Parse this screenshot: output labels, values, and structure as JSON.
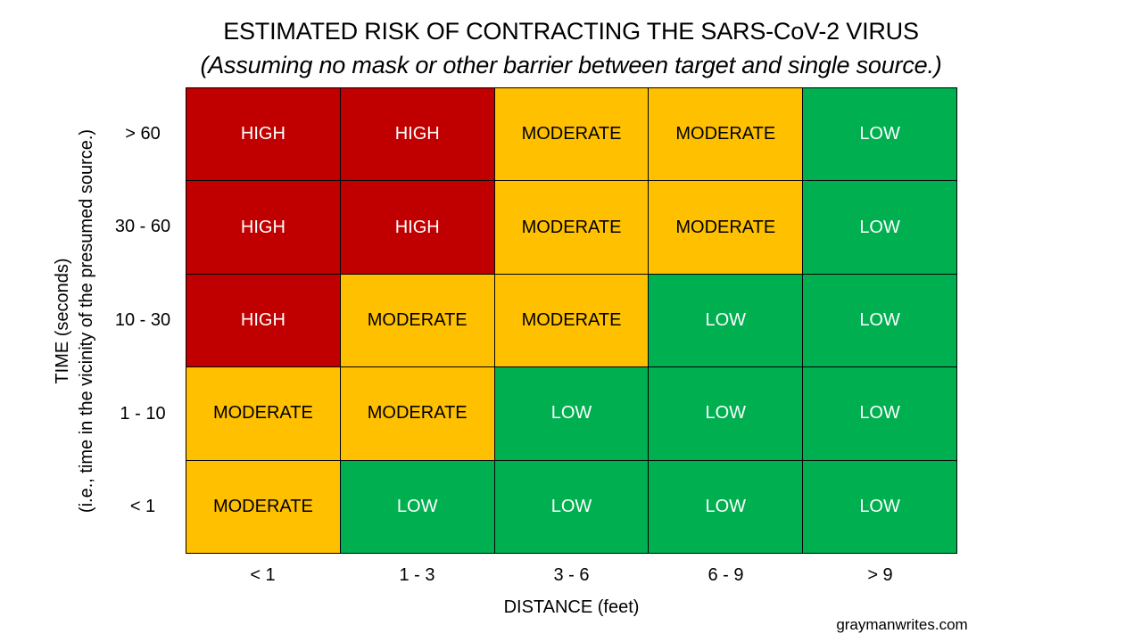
{
  "chart_data": {
    "type": "heatmap",
    "title": "ESTIMATED RISK OF CONTRACTING THE SARS-CoV-2 VIRUS",
    "subtitle": "(Assuming no mask or other barrier between target and single source.)",
    "xlabel": "DISTANCE (feet)",
    "ylabel": [
      "TIME (seconds)",
      "(i.e., time in the vicinity of the presumed source.)"
    ],
    "x_categories": [
      "< 1",
      "1 - 3",
      "3 - 6",
      "6 - 9",
      "> 9"
    ],
    "y_categories": [
      "> 60",
      "30 - 60",
      "10 - 30",
      "1 - 10",
      "< 1"
    ],
    "values": [
      [
        "HIGH",
        "HIGH",
        "MODERATE",
        "MODERATE",
        "LOW"
      ],
      [
        "HIGH",
        "HIGH",
        "MODERATE",
        "MODERATE",
        "LOW"
      ],
      [
        "HIGH",
        "MODERATE",
        "MODERATE",
        "LOW",
        "LOW"
      ],
      [
        "MODERATE",
        "MODERATE",
        "LOW",
        "LOW",
        "LOW"
      ],
      [
        "MODERATE",
        "LOW",
        "LOW",
        "LOW",
        "LOW"
      ]
    ],
    "colors": {
      "HIGH": "#c00000",
      "MODERATE": "#ffc000",
      "LOW": "#00b050"
    }
  },
  "credit": "graymanwrites.com"
}
